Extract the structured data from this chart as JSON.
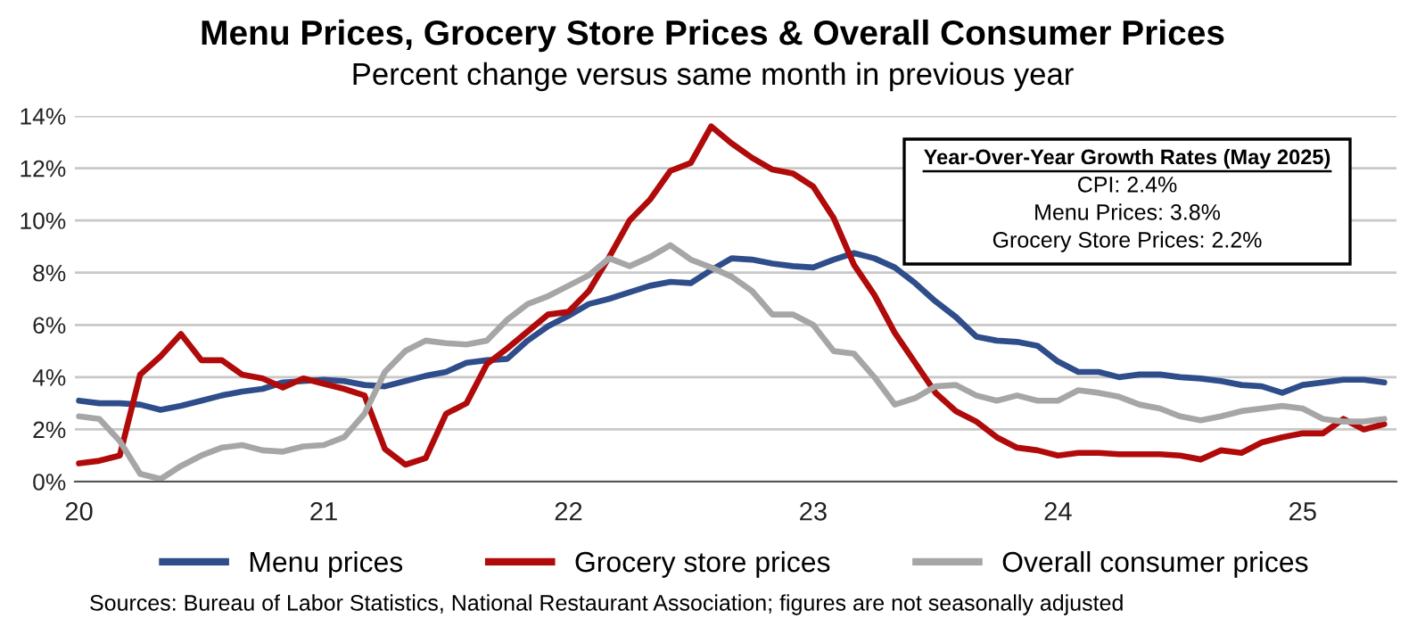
{
  "chart_data": {
    "type": "line",
    "title": "Menu Prices, Grocery Store Prices & Overall Consumer Prices",
    "subtitle": "Percent change versus same month in previous year",
    "categories": [
      "20",
      null,
      null,
      null,
      null,
      null,
      null,
      null,
      null,
      null,
      null,
      null,
      "21",
      null,
      null,
      null,
      null,
      null,
      null,
      null,
      null,
      null,
      null,
      null,
      "22",
      null,
      null,
      null,
      null,
      null,
      null,
      null,
      null,
      null,
      null,
      null,
      "23",
      null,
      null,
      null,
      null,
      null,
      null,
      null,
      null,
      null,
      null,
      null,
      "24",
      null,
      null,
      null,
      null,
      null,
      null,
      null,
      null,
      null,
      null,
      null,
      "25",
      null,
      null,
      null,
      null
    ],
    "series": [
      {
        "name": "Menu prices",
        "color": "#2e4d8a",
        "values": [
          3.1,
          3.0,
          3.0,
          2.95,
          2.75,
          2.9,
          3.1,
          3.3,
          3.45,
          3.55,
          3.8,
          3.85,
          3.9,
          3.85,
          3.7,
          3.65,
          3.85,
          4.05,
          4.2,
          4.55,
          4.65,
          4.7,
          5.4,
          5.95,
          6.35,
          6.8,
          7.0,
          7.25,
          7.5,
          7.65,
          7.6,
          8.1,
          8.55,
          8.5,
          8.35,
          8.25,
          8.2,
          8.5,
          8.75,
          8.55,
          8.2,
          7.6,
          6.9,
          6.3,
          5.55,
          5.4,
          5.35,
          5.2,
          4.6,
          4.2,
          4.2,
          4.0,
          4.1,
          4.1,
          4.0,
          3.95,
          3.85,
          3.7,
          3.65,
          3.4,
          3.7,
          3.8,
          3.9,
          3.9,
          3.8
        ]
      },
      {
        "name": "Grocery store prices",
        "color": "#b00a0a",
        "values": [
          0.7,
          0.8,
          1.0,
          4.1,
          4.8,
          5.65,
          4.65,
          4.65,
          4.1,
          3.95,
          3.6,
          3.95,
          3.75,
          3.55,
          3.3,
          1.25,
          0.65,
          0.9,
          2.6,
          3.0,
          4.5,
          5.1,
          5.75,
          6.4,
          6.5,
          7.3,
          8.6,
          10.0,
          10.8,
          11.9,
          12.2,
          13.6,
          12.95,
          12.4,
          11.95,
          11.8,
          11.3,
          10.1,
          8.3,
          7.15,
          5.7,
          4.55,
          3.4,
          2.7,
          2.3,
          1.7,
          1.3,
          1.2,
          1.0,
          1.1,
          1.1,
          1.05,
          1.05,
          1.05,
          1.0,
          0.85,
          1.2,
          1.1,
          1.5,
          1.7,
          1.85,
          1.85,
          2.4,
          2.0,
          2.2
        ]
      },
      {
        "name": "Overall consumer prices",
        "color": "#a6a6a6",
        "values": [
          2.5,
          2.4,
          1.55,
          0.3,
          0.1,
          0.6,
          1.0,
          1.3,
          1.4,
          1.2,
          1.15,
          1.35,
          1.4,
          1.7,
          2.6,
          4.2,
          5.0,
          5.4,
          5.3,
          5.25,
          5.4,
          6.2,
          6.8,
          7.1,
          7.5,
          7.9,
          8.55,
          8.25,
          8.6,
          9.05,
          8.5,
          8.2,
          7.85,
          7.3,
          6.4,
          6.4,
          6.0,
          5.0,
          4.9,
          4.0,
          2.95,
          3.2,
          3.65,
          3.7,
          3.3,
          3.1,
          3.3,
          3.1,
          3.1,
          3.5,
          3.4,
          3.25,
          2.95,
          2.8,
          2.5,
          2.35,
          2.5,
          2.7,
          2.8,
          2.9,
          2.8,
          2.4,
          2.3,
          2.3,
          2.4
        ]
      }
    ],
    "ylim": [
      0,
      14
    ],
    "yticks": [
      {
        "value": 0,
        "label": "0%"
      },
      {
        "value": 2,
        "label": "2%"
      },
      {
        "value": 4,
        "label": "4%"
      },
      {
        "value": 6,
        "label": "6%"
      },
      {
        "value": 8,
        "label": "8%"
      },
      {
        "value": 10,
        "label": "10%"
      },
      {
        "value": 12,
        "label": "12%"
      },
      {
        "value": 14,
        "label": "14%"
      }
    ],
    "grid": "y",
    "legend": "bottom",
    "marker": "none",
    "line_style": "solid",
    "annotations": [
      "Year-Over-Year Growth Rates (May 2025)",
      "CPI: 2.4%",
      "Menu Prices: 3.8%",
      "Grocery Store Prices: 2.2%",
      "Sources: Bureau of Labor Statistics, National Restaurant Association; figures are not seasonally adjusted"
    ]
  }
}
